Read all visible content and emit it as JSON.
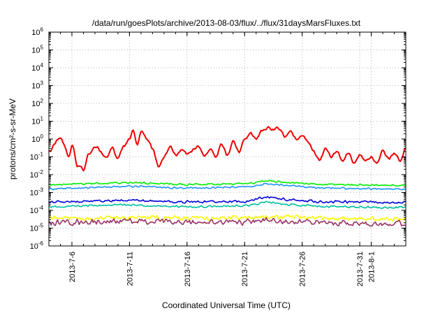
{
  "chart_data": {
    "type": "line",
    "title": "/data/run/goesPlots/archive/2013-08-03/flux/../flux/31daysMarsFluxes.txt",
    "xlabel": "Coordinated Universal Time (UTC)",
    "ylabel": "protons/cm²-s-sr-MeV",
    "y_scale": "log",
    "grid": true,
    "xlim": [
      "2013-07-04",
      "2013-08-04"
    ],
    "ylim": [
      1e-06,
      1000000.0
    ],
    "x_ticks": [
      "2013-7-6",
      "2013-7-11",
      "2013-7-16",
      "2013-7-21",
      "2013-7-26",
      "2013-7-31",
      "2013-8-1"
    ],
    "y_ticks": [
      {
        "base": "10",
        "exp": "-6"
      },
      {
        "base": "10",
        "exp": "-5"
      },
      {
        "base": "10",
        "exp": "-4"
      },
      {
        "base": "10",
        "exp": "-3"
      },
      {
        "base": "10",
        "exp": "-2"
      },
      {
        "base": "10",
        "exp": "-1"
      },
      {
        "base": "10",
        "exp": "0"
      },
      {
        "base": "10",
        "exp": "1"
      },
      {
        "base": "10",
        "exp": "2"
      },
      {
        "base": "10",
        "exp": "3"
      },
      {
        "base": "10",
        "exp": "4"
      },
      {
        "base": "10",
        "exp": "5"
      },
      {
        "base": "10",
        "exp": "6"
      }
    ],
    "series": [
      {
        "color": "#ee0000",
        "noise": 0.1,
        "points": [
          [
            "2013-07-04",
            0.22
          ],
          [
            "2013-07-05",
            1.3
          ],
          [
            "2013-07-05T18:00",
            0.1
          ],
          [
            "2013-07-06",
            0.5
          ],
          [
            "2013-07-06T12:00",
            0.03
          ],
          [
            "2013-07-07",
            0.02
          ],
          [
            "2013-07-07T12:00",
            0.15
          ],
          [
            "2013-07-08",
            0.4
          ],
          [
            "2013-07-09",
            0.1
          ],
          [
            "2013-07-09T12:00",
            0.35
          ],
          [
            "2013-07-10",
            0.08
          ],
          [
            "2013-07-10T12:00",
            0.4
          ],
          [
            "2013-07-11",
            1.0
          ],
          [
            "2013-07-11T08:00",
            3.0
          ],
          [
            "2013-07-11T16:00",
            0.5
          ],
          [
            "2013-07-12",
            3.0
          ],
          [
            "2013-07-12T12:00",
            1.0
          ],
          [
            "2013-07-13",
            0.3
          ],
          [
            "2013-07-13T12:00",
            0.03
          ],
          [
            "2013-07-14",
            0.1
          ],
          [
            "2013-07-14T12:00",
            0.4
          ],
          [
            "2013-07-15",
            0.12
          ],
          [
            "2013-07-15T12:00",
            0.25
          ],
          [
            "2013-07-16",
            0.15
          ],
          [
            "2013-07-17",
            0.4
          ],
          [
            "2013-07-17T12:00",
            0.1
          ],
          [
            "2013-07-18",
            0.3
          ],
          [
            "2013-07-18T12:00",
            0.1
          ],
          [
            "2013-07-19",
            0.5
          ],
          [
            "2013-07-19T12:00",
            0.12
          ],
          [
            "2013-07-20",
            0.8
          ],
          [
            "2013-07-20T12:00",
            0.2
          ],
          [
            "2013-07-21",
            1.0
          ],
          [
            "2013-07-21T12:00",
            2.0
          ],
          [
            "2013-07-22",
            1.0
          ],
          [
            "2013-07-22T12:00",
            3.0
          ],
          [
            "2013-07-23",
            4.0
          ],
          [
            "2013-07-23T12:00",
            3.5
          ],
          [
            "2013-07-24",
            4.0
          ],
          [
            "2013-07-24T12:00",
            1.5
          ],
          [
            "2013-07-25",
            2.5
          ],
          [
            "2013-07-25T12:00",
            1.0
          ],
          [
            "2013-07-26",
            1.8
          ],
          [
            "2013-07-26T12:00",
            0.8
          ],
          [
            "2013-07-27",
            0.2
          ],
          [
            "2013-07-27T12:00",
            0.06
          ],
          [
            "2013-07-28",
            0.3
          ],
          [
            "2013-07-28T12:00",
            0.1
          ],
          [
            "2013-07-29",
            0.2
          ],
          [
            "2013-07-29T12:00",
            0.06
          ],
          [
            "2013-07-30",
            0.15
          ],
          [
            "2013-07-30T12:00",
            0.05
          ],
          [
            "2013-07-31",
            0.12
          ],
          [
            "2013-07-31T12:00",
            0.06
          ],
          [
            "2013-08-01",
            0.1
          ],
          [
            "2013-08-01T12:00",
            0.04
          ],
          [
            "2013-08-02",
            0.2
          ],
          [
            "2013-08-02T12:00",
            0.08
          ],
          [
            "2013-08-03",
            0.15
          ],
          [
            "2013-08-03T12:00",
            0.06
          ],
          [
            "2013-08-04",
            0.3
          ]
        ]
      },
      {
        "color": "#00ee00",
        "noise": 0.06,
        "points": [
          [
            "2013-07-04",
            0.0028
          ],
          [
            "2013-07-11",
            0.0035
          ],
          [
            "2013-07-16",
            0.0028
          ],
          [
            "2013-07-21",
            0.003
          ],
          [
            "2013-07-23",
            0.0045
          ],
          [
            "2013-07-25",
            0.0035
          ],
          [
            "2013-07-28",
            0.0028
          ],
          [
            "2013-08-04",
            0.0025
          ]
        ]
      },
      {
        "color": "#1e90ff",
        "noise": 0.06,
        "points": [
          [
            "2013-07-04",
            0.0016
          ],
          [
            "2013-07-11",
            0.0022
          ],
          [
            "2013-07-16",
            0.0018
          ],
          [
            "2013-07-21",
            0.002
          ],
          [
            "2013-07-23",
            0.003
          ],
          [
            "2013-07-25",
            0.0024
          ],
          [
            "2013-07-28",
            0.0018
          ],
          [
            "2013-08-04",
            0.0015
          ]
        ]
      },
      {
        "color": "#0000dd",
        "noise": 0.08,
        "points": [
          [
            "2013-07-04",
            0.0003
          ],
          [
            "2013-07-11",
            0.00035
          ],
          [
            "2013-07-16",
            0.0003
          ],
          [
            "2013-07-21",
            0.00032
          ],
          [
            "2013-07-23",
            0.00055
          ],
          [
            "2013-07-25",
            0.00038
          ],
          [
            "2013-07-28",
            0.0003
          ],
          [
            "2013-08-04",
            0.00028
          ]
        ]
      },
      {
        "color": "#00bfa0",
        "noise": 0.07,
        "points": [
          [
            "2013-07-04",
            0.00016
          ],
          [
            "2013-07-11",
            0.0002
          ],
          [
            "2013-07-16",
            0.00016
          ],
          [
            "2013-07-21",
            0.00018
          ],
          [
            "2013-07-23",
            0.00028
          ],
          [
            "2013-07-25",
            0.0002
          ],
          [
            "2013-07-28",
            0.00016
          ],
          [
            "2013-08-04",
            0.00014
          ]
        ]
      },
      {
        "color": "#ffff00",
        "noise": 0.16,
        "points": [
          [
            "2013-07-04",
            3.5e-05
          ],
          [
            "2013-07-11",
            4e-05
          ],
          [
            "2013-07-16",
            3.5e-05
          ],
          [
            "2013-07-21",
            3.8e-05
          ],
          [
            "2013-07-23",
            4.5e-05
          ],
          [
            "2013-07-28",
            3.5e-05
          ],
          [
            "2013-08-04",
            3.2e-05
          ]
        ]
      },
      {
        "color": "#993366",
        "noise": 0.2,
        "points": [
          [
            "2013-07-04",
            2e-05
          ],
          [
            "2013-07-11",
            2.5e-05
          ],
          [
            "2013-07-16",
            2e-05
          ],
          [
            "2013-07-21",
            2.2e-05
          ],
          [
            "2013-07-23",
            2.8e-05
          ],
          [
            "2013-07-28",
            2e-05
          ],
          [
            "2013-08-04",
            1.8e-05
          ]
        ]
      }
    ]
  }
}
